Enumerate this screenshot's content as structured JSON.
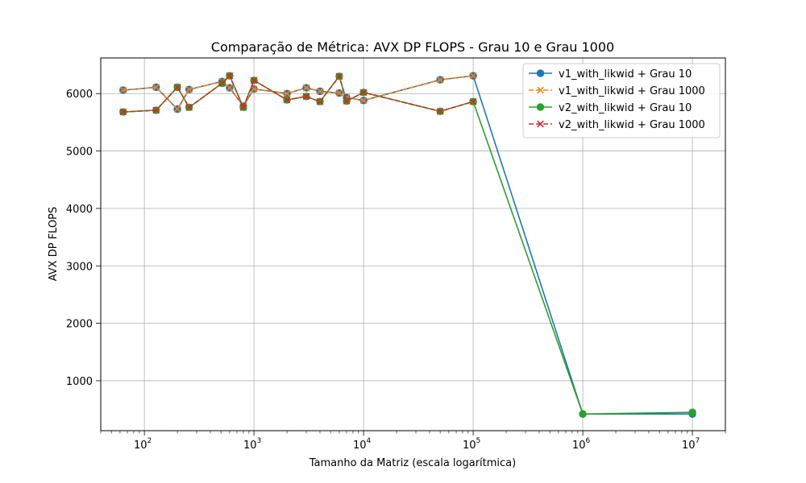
{
  "chart_data": {
    "type": "line",
    "title": "Comparação de Métrica: AVX DP FLOPS - Grau 10 e Grau 1000",
    "xlabel": "Tamanho da Matriz (escala logarítmica)",
    "ylabel": "AVX DP FLOPS",
    "xscale": "log",
    "xlim": [
      40,
      20000000
    ],
    "ylim": [
      130,
      6620
    ],
    "x_ticks": [
      {
        "value": 100,
        "base": "10",
        "exp": "2"
      },
      {
        "value": 1000,
        "base": "10",
        "exp": "3"
      },
      {
        "value": 10000,
        "base": "10",
        "exp": "4"
      },
      {
        "value": 100000,
        "base": "10",
        "exp": "5"
      },
      {
        "value": 1000000,
        "base": "10",
        "exp": "6"
      },
      {
        "value": 10000000,
        "base": "10",
        "exp": "7"
      }
    ],
    "y_ticks": [
      1000,
      2000,
      3000,
      4000,
      5000,
      6000
    ],
    "grid": true,
    "legend_position": "upper right",
    "series": [
      {
        "name": "v1_with_likwid + Grau 10",
        "color": "#1f77b4",
        "linestyle": "solid",
        "marker": "circle",
        "x": [
          64,
          128,
          200,
          256,
          512,
          600,
          800,
          1000,
          2000,
          3000,
          4000,
          6000,
          7000,
          10000,
          50000,
          100000,
          1000000,
          10000000
        ],
        "y": [
          6060,
          6110,
          5730,
          6070,
          6210,
          6100,
          5780,
          6080,
          6000,
          6100,
          6040,
          6010,
          5930,
          5880,
          6240,
          6310,
          420,
          420
        ]
      },
      {
        "name": "v1_with_likwid + Grau 1000",
        "color": "#ff7f0e",
        "linestyle": "dashed",
        "marker": "x",
        "x": [
          64,
          128,
          200,
          256,
          512,
          600,
          800,
          1000,
          2000,
          3000,
          4000,
          6000,
          7000,
          10000,
          50000,
          100000
        ],
        "y": [
          6060,
          6110,
          5730,
          6070,
          6210,
          6100,
          5780,
          6080,
          6000,
          6100,
          6040,
          6010,
          5930,
          5880,
          6240,
          6310
        ]
      },
      {
        "name": "v2_with_likwid + Grau 10",
        "color": "#2ca02c",
        "linestyle": "solid",
        "marker": "circle",
        "x": [
          64,
          128,
          200,
          256,
          512,
          600,
          800,
          1000,
          2000,
          3000,
          4000,
          6000,
          7000,
          10000,
          50000,
          100000,
          1000000,
          10000000
        ],
        "y": [
          5680,
          5710,
          6110,
          5760,
          6180,
          6310,
          5760,
          6230,
          5890,
          5950,
          5860,
          6300,
          5870,
          6020,
          5690,
          5860,
          420,
          450
        ]
      },
      {
        "name": "v2_with_likwid + Grau 1000",
        "color": "#d62728",
        "linestyle": "dashed",
        "marker": "x",
        "x": [
          64,
          128,
          200,
          256,
          512,
          600,
          800,
          1000,
          2000,
          3000,
          4000,
          6000,
          7000,
          10000,
          50000,
          100000
        ],
        "y": [
          5680,
          5710,
          6110,
          5760,
          6180,
          6310,
          5760,
          6230,
          5890,
          5950,
          5860,
          6300,
          5870,
          6020,
          5690,
          5860
        ]
      }
    ]
  }
}
